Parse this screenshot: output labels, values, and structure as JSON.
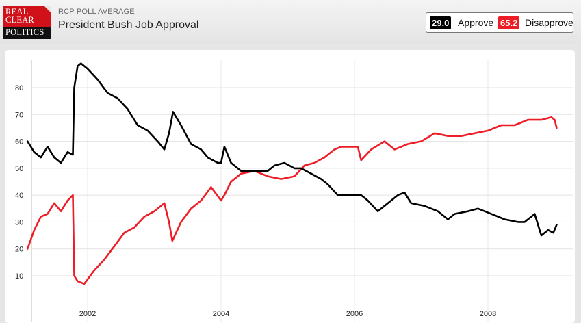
{
  "header": {
    "logo_lines": [
      "REAL",
      "CLEAR",
      "POLITICS"
    ],
    "kicker": "RCP POLL AVERAGE",
    "title": "President Bush Job Approval"
  },
  "legend": {
    "items": [
      {
        "value": "29.0",
        "label": "Approve",
        "color": "#000000"
      },
      {
        "value": "65.2",
        "label": "Disapprove",
        "color": "#ee1c25"
      }
    ]
  },
  "chart_data": {
    "type": "line",
    "title": "President Bush Job Approval",
    "xlabel": "",
    "ylabel": "",
    "xlim": [
      2001.1,
      2009.05
    ],
    "ylim": [
      0,
      90
    ],
    "x_ticks": [
      "2002",
      "2004",
      "2006",
      "2008"
    ],
    "y_ticks": [
      "10",
      "20",
      "30",
      "40",
      "50",
      "60",
      "70",
      "80"
    ],
    "grid": true,
    "legend_position": "top-right",
    "series": [
      {
        "name": "Approve",
        "color": "#000000",
        "points": [
          [
            2001.1,
            60
          ],
          [
            2001.2,
            56
          ],
          [
            2001.3,
            54
          ],
          [
            2001.4,
            58
          ],
          [
            2001.5,
            54
          ],
          [
            2001.6,
            52
          ],
          [
            2001.7,
            56
          ],
          [
            2001.78,
            55
          ],
          [
            2001.8,
            80
          ],
          [
            2001.85,
            88
          ],
          [
            2001.9,
            89
          ],
          [
            2002.0,
            87
          ],
          [
            2002.15,
            83
          ],
          [
            2002.3,
            78
          ],
          [
            2002.45,
            76
          ],
          [
            2002.6,
            72
          ],
          [
            2002.75,
            66
          ],
          [
            2002.9,
            64
          ],
          [
            2003.05,
            60
          ],
          [
            2003.15,
            57
          ],
          [
            2003.22,
            63
          ],
          [
            2003.28,
            71
          ],
          [
            2003.4,
            66
          ],
          [
            2003.55,
            59
          ],
          [
            2003.7,
            57
          ],
          [
            2003.8,
            54
          ],
          [
            2003.95,
            52
          ],
          [
            2004.0,
            52
          ],
          [
            2004.05,
            58
          ],
          [
            2004.15,
            52
          ],
          [
            2004.3,
            49
          ],
          [
            2004.5,
            49
          ],
          [
            2004.7,
            49
          ],
          [
            2004.8,
            51
          ],
          [
            2004.95,
            52
          ],
          [
            2005.1,
            50
          ],
          [
            2005.2,
            50
          ],
          [
            2005.35,
            48
          ],
          [
            2005.5,
            46
          ],
          [
            2005.6,
            44
          ],
          [
            2005.75,
            40
          ],
          [
            2006.0,
            40
          ],
          [
            2006.1,
            40
          ],
          [
            2006.2,
            38
          ],
          [
            2006.35,
            34
          ],
          [
            2006.5,
            37
          ],
          [
            2006.65,
            40
          ],
          [
            2006.75,
            41
          ],
          [
            2006.85,
            37
          ],
          [
            2007.05,
            36
          ],
          [
            2007.25,
            34
          ],
          [
            2007.4,
            31
          ],
          [
            2007.5,
            33
          ],
          [
            2007.7,
            34
          ],
          [
            2007.85,
            35
          ],
          [
            2008.05,
            33
          ],
          [
            2008.25,
            31
          ],
          [
            2008.45,
            30
          ],
          [
            2008.55,
            30
          ],
          [
            2008.7,
            33
          ],
          [
            2008.8,
            25
          ],
          [
            2008.9,
            27
          ],
          [
            2008.98,
            26
          ],
          [
            2009.03,
            29
          ]
        ]
      },
      {
        "name": "Disapprove",
        "color": "#ee1c25",
        "points": [
          [
            2001.1,
            20
          ],
          [
            2001.2,
            27
          ],
          [
            2001.3,
            32
          ],
          [
            2001.4,
            33
          ],
          [
            2001.5,
            37
          ],
          [
            2001.6,
            34
          ],
          [
            2001.7,
            38
          ],
          [
            2001.78,
            40
          ],
          [
            2001.8,
            10
          ],
          [
            2001.85,
            8
          ],
          [
            2001.95,
            7
          ],
          [
            2002.1,
            12
          ],
          [
            2002.25,
            16
          ],
          [
            2002.4,
            21
          ],
          [
            2002.55,
            26
          ],
          [
            2002.7,
            28
          ],
          [
            2002.85,
            32
          ],
          [
            2003.0,
            34
          ],
          [
            2003.15,
            37
          ],
          [
            2003.22,
            30
          ],
          [
            2003.27,
            23
          ],
          [
            2003.4,
            30
          ],
          [
            2003.55,
            35
          ],
          [
            2003.7,
            38
          ],
          [
            2003.85,
            43
          ],
          [
            2004.0,
            38
          ],
          [
            2004.05,
            40
          ],
          [
            2004.15,
            45
          ],
          [
            2004.3,
            48
          ],
          [
            2004.5,
            49
          ],
          [
            2004.7,
            47
          ],
          [
            2004.9,
            46
          ],
          [
            2005.1,
            47
          ],
          [
            2005.25,
            51
          ],
          [
            2005.4,
            52
          ],
          [
            2005.55,
            54
          ],
          [
            2005.7,
            57
          ],
          [
            2005.8,
            58
          ],
          [
            2006.05,
            58
          ],
          [
            2006.1,
            53
          ],
          [
            2006.25,
            57
          ],
          [
            2006.45,
            60
          ],
          [
            2006.6,
            57
          ],
          [
            2006.8,
            59
          ],
          [
            2007.0,
            60
          ],
          [
            2007.2,
            63
          ],
          [
            2007.4,
            62
          ],
          [
            2007.6,
            62
          ],
          [
            2007.8,
            63
          ],
          [
            2008.0,
            64
          ],
          [
            2008.2,
            66
          ],
          [
            2008.4,
            66
          ],
          [
            2008.6,
            68
          ],
          [
            2008.8,
            68
          ],
          [
            2008.95,
            69
          ],
          [
            2009.0,
            68
          ],
          [
            2009.03,
            65
          ]
        ]
      }
    ]
  }
}
